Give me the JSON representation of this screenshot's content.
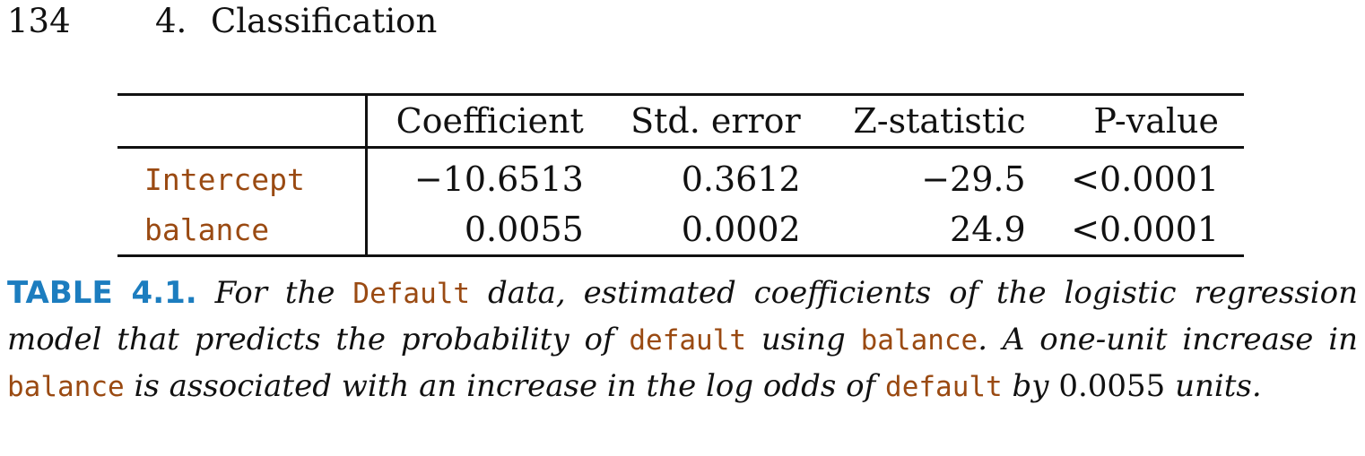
{
  "running_head": {
    "page_number": "134",
    "chapter_number": "4.",
    "chapter_title": "Classification"
  },
  "table": {
    "columns": [
      "",
      "Coefficient",
      "Std. error",
      "Z-statistic",
      "P-value"
    ],
    "rows": [
      {
        "name": "Intercept",
        "coefficient": "−10.6513",
        "std_error": "0.3612",
        "z_statistic": "−29.5",
        "p_value": "<0.0001"
      },
      {
        "name": "balance",
        "coefficient": "0.0055",
        "std_error": "0.0002",
        "z_statistic": "24.9",
        "p_value": "<0.0001"
      }
    ]
  },
  "caption": {
    "label": "TABLE 4.1.",
    "t1": "For the",
    "c1": "Default",
    "t2": "data, estimated coefficients of the logistic regression model that predicts the probability of",
    "c2": "default",
    "t3": "using",
    "c3": "balance",
    "t4": ". A one-unit increase in",
    "c4": "balance",
    "t5": "is associated with an increase in the log odds of",
    "c5": "default",
    "t6": "by",
    "n1": "0.0055",
    "t7": "units."
  },
  "colors": {
    "code_text": "#9a4a12",
    "caption_label": "#1c7dbf",
    "text": "#111111"
  }
}
